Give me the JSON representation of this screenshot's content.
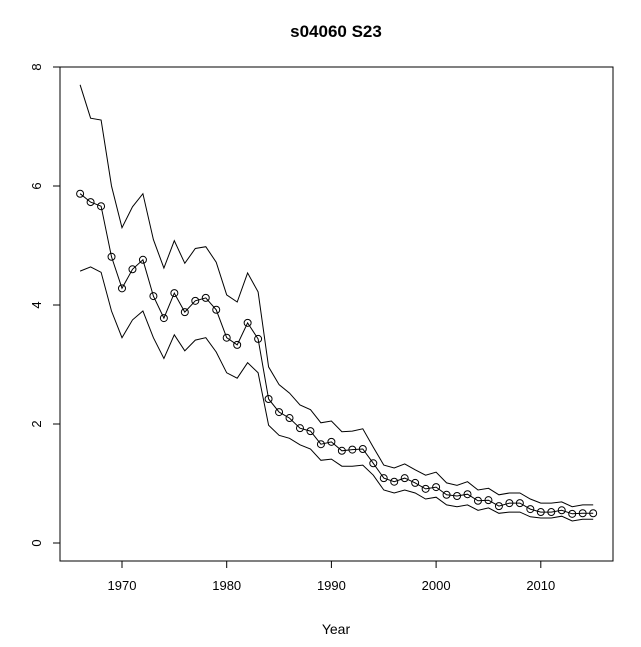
{
  "chart_data": {
    "type": "line",
    "title": "s04060 S23",
    "xlabel": "Year",
    "ylabel": "",
    "xlim": [
      1964.1,
      2017
    ],
    "ylim": [
      -0.4,
      8.0
    ],
    "x_ticks": [
      1970,
      1980,
      1990,
      2000,
      2010
    ],
    "y_ticks": [
      0,
      2,
      4,
      6,
      8
    ],
    "grid": false,
    "legend": null,
    "x": [
      1966,
      1967,
      1968,
      1969,
      1970,
      1971,
      1972,
      1973,
      1974,
      1975,
      1976,
      1977,
      1978,
      1979,
      1980,
      1981,
      1982,
      1983,
      1984,
      1985,
      1986,
      1987,
      1988,
      1989,
      1990,
      1991,
      1992,
      1993,
      1994,
      1995,
      1996,
      1997,
      1998,
      1999,
      2000,
      2001,
      2002,
      2003,
      2004,
      2005,
      2006,
      2007,
      2008,
      2009,
      2010,
      2011,
      2012,
      2013,
      2014,
      2015
    ],
    "series": [
      {
        "name": "upper",
        "style": "line",
        "values": [
          7.7,
          7.14,
          7.11,
          6.0,
          5.3,
          5.65,
          5.87,
          5.1,
          4.62,
          5.08,
          4.7,
          4.95,
          4.98,
          4.72,
          4.17,
          4.05,
          4.54,
          4.22,
          2.96,
          2.66,
          2.52,
          2.32,
          2.24,
          2.02,
          2.05,
          1.87,
          1.88,
          1.92,
          1.61,
          1.31,
          1.26,
          1.33,
          1.23,
          1.14,
          1.19,
          1.01,
          0.97,
          1.03,
          0.89,
          0.92,
          0.81,
          0.84,
          0.84,
          0.74,
          0.67,
          0.67,
          0.69,
          0.61,
          0.64,
          0.64
        ]
      },
      {
        "name": "estimate",
        "style": "line+circles",
        "values": [
          5.87,
          5.73,
          5.66,
          4.81,
          4.28,
          4.6,
          4.76,
          4.15,
          3.78,
          4.2,
          3.88,
          4.07,
          4.12,
          3.92,
          3.45,
          3.33,
          3.7,
          3.43,
          2.42,
          2.2,
          2.1,
          1.93,
          1.88,
          1.66,
          1.7,
          1.55,
          1.57,
          1.58,
          1.34,
          1.09,
          1.03,
          1.09,
          1.01,
          0.91,
          0.94,
          0.81,
          0.79,
          0.82,
          0.71,
          0.72,
          0.62,
          0.67,
          0.67,
          0.57,
          0.52,
          0.52,
          0.55,
          0.49,
          0.5,
          0.5
        ]
      },
      {
        "name": "lower",
        "style": "line",
        "values": [
          4.57,
          4.64,
          4.55,
          3.9,
          3.45,
          3.75,
          3.9,
          3.45,
          3.1,
          3.5,
          3.23,
          3.41,
          3.45,
          3.21,
          2.86,
          2.77,
          3.03,
          2.86,
          1.98,
          1.81,
          1.76,
          1.65,
          1.58,
          1.39,
          1.41,
          1.29,
          1.29,
          1.31,
          1.14,
          0.89,
          0.84,
          0.89,
          0.84,
          0.74,
          0.77,
          0.64,
          0.61,
          0.64,
          0.55,
          0.59,
          0.5,
          0.52,
          0.52,
          0.44,
          0.42,
          0.42,
          0.45,
          0.37,
          0.4,
          0.4
        ]
      }
    ]
  },
  "colors": {
    "line": "#000000",
    "background": "#ffffff"
  }
}
